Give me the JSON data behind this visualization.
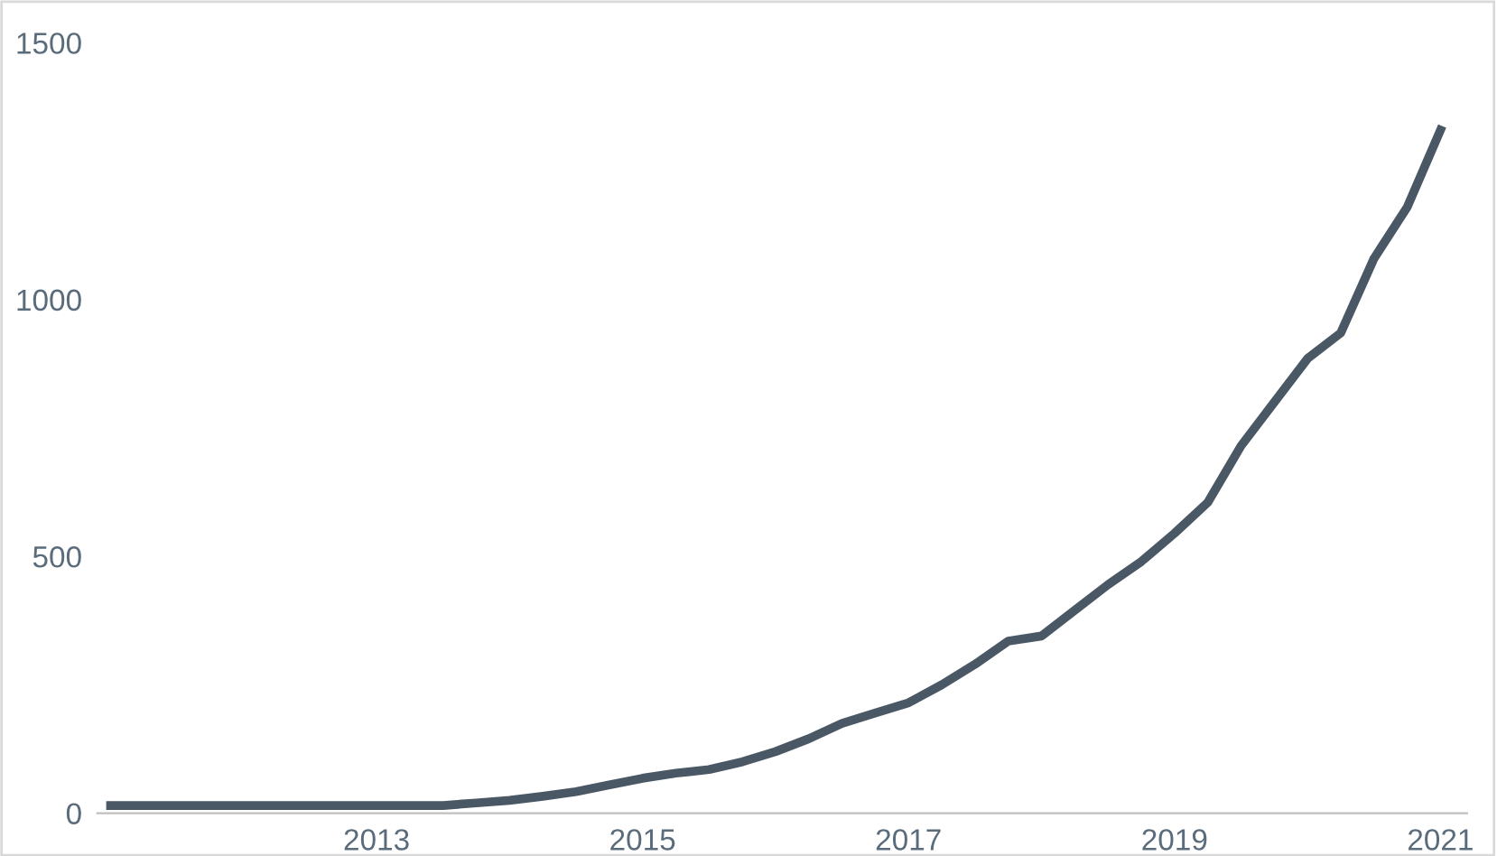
{
  "chart_data": {
    "type": "line",
    "x": [
      2011.0,
      2011.25,
      2011.5,
      2011.75,
      2012.0,
      2012.25,
      2012.5,
      2012.75,
      2013.0,
      2013.25,
      2013.5,
      2013.75,
      2014.0,
      2014.25,
      2014.5,
      2014.75,
      2015.0,
      2015.25,
      2015.5,
      2015.75,
      2016.0,
      2016.25,
      2016.5,
      2016.75,
      2017.0,
      2017.25,
      2017.5,
      2017.75,
      2018.0,
      2018.25,
      2018.5,
      2018.75,
      2019.0,
      2019.25,
      2019.5,
      2019.75,
      2020.0,
      2020.25,
      2020.5,
      2020.75,
      2021.0
    ],
    "series": [
      {
        "color": "#4a5866",
        "values": [
          15,
          15,
          15,
          15,
          15,
          15,
          15,
          15,
          15,
          15,
          15,
          20,
          25,
          33,
          42,
          55,
          68,
          78,
          85,
          100,
          120,
          145,
          175,
          195,
          215,
          250,
          290,
          335,
          345,
          395,
          445,
          490,
          545,
          605,
          715,
          800,
          885,
          935,
          1080,
          1180,
          1330
        ]
      }
    ],
    "xlim": [
      2010.9,
      2021.2
    ],
    "xticks": [
      2013,
      2015,
      2017,
      2019,
      2021
    ],
    "ylim": [
      0,
      1500
    ],
    "yticks": [
      0,
      500,
      1000,
      1500
    ],
    "grid": false,
    "legend": false,
    "marker": "none",
    "line_style": "solid"
  }
}
